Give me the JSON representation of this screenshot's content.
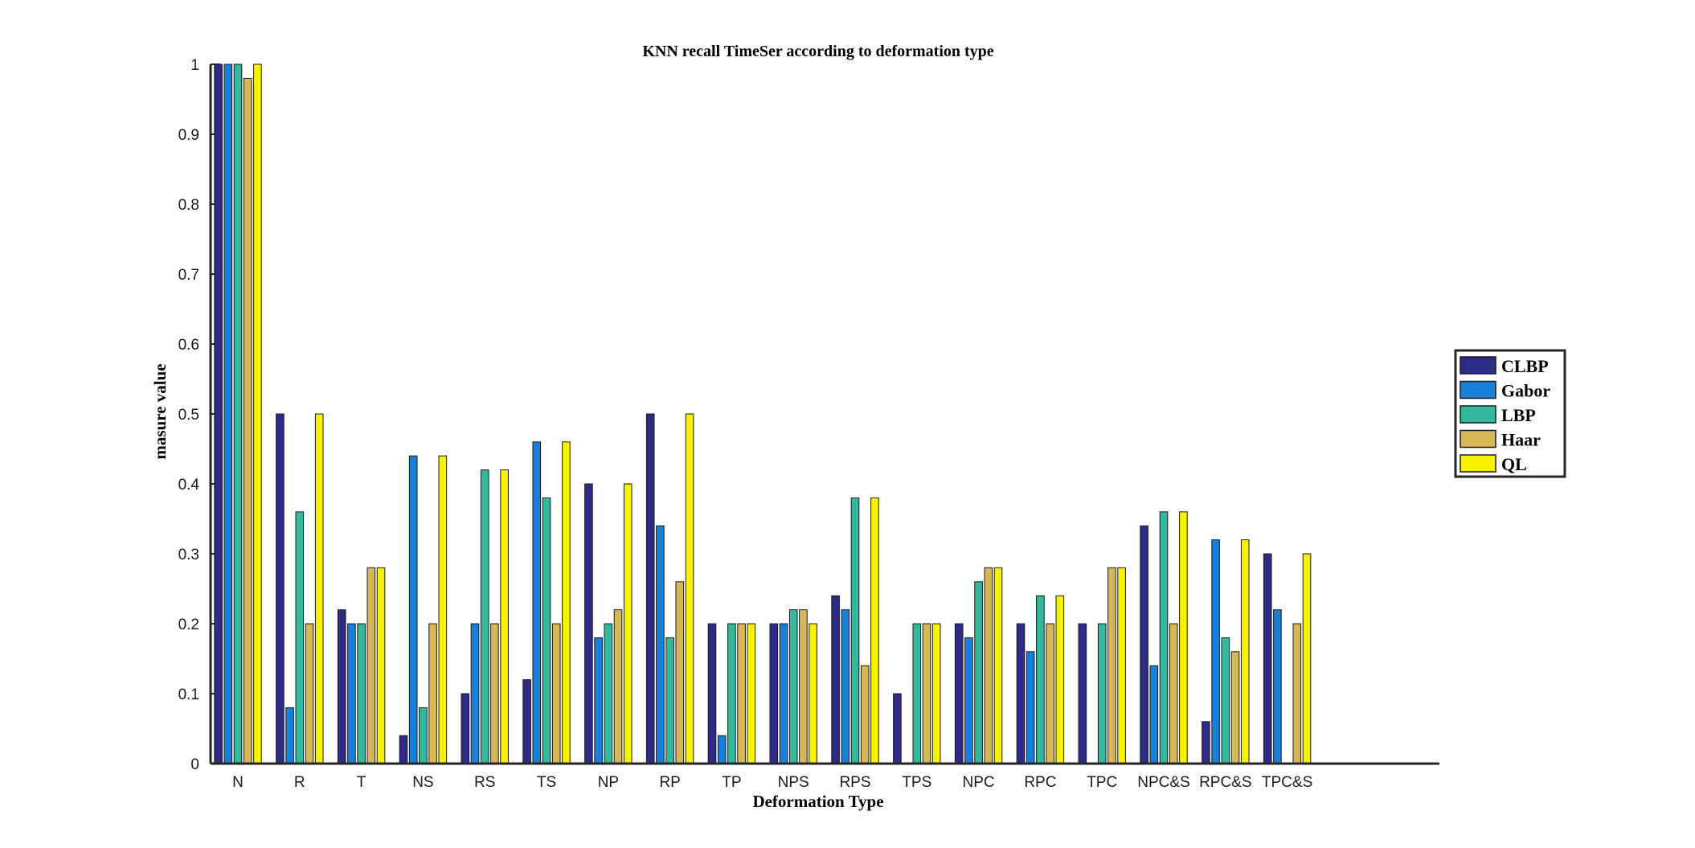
{
  "chart_data": {
    "type": "bar",
    "title": "KNN recall TimeSer according to deformation type",
    "xlabel": "Deformation Type",
    "ylabel": "masure value",
    "ylim": [
      0,
      1
    ],
    "yticks": [
      "0",
      "0.1",
      "0.2",
      "0.3",
      "0.4",
      "0.5",
      "0.6",
      "0.7",
      "0.8",
      "0.9",
      "1"
    ],
    "grid": false,
    "legend_position": "right",
    "categories": [
      "N",
      "R",
      "T",
      "NS",
      "RS",
      "TS",
      "NP",
      "RP",
      "TP",
      "NPS",
      "RPS",
      "TPS",
      "NPC",
      "RPC",
      "TPC",
      "NPC&S",
      "RPC&S",
      "TPC&S"
    ],
    "series": [
      {
        "name": "CLBP",
        "color": "#2e2a87",
        "values": [
          1.0,
          0.5,
          0.22,
          0.04,
          0.1,
          0.12,
          0.4,
          0.5,
          0.2,
          0.2,
          0.24,
          0.1,
          0.2,
          0.2,
          0.2,
          0.34,
          0.06,
          0.3
        ]
      },
      {
        "name": "Gabor",
        "color": "#1a7fd8",
        "values": [
          1.0,
          0.08,
          0.2,
          0.44,
          0.2,
          0.46,
          0.18,
          0.34,
          0.04,
          0.2,
          0.22,
          0.0,
          0.18,
          0.16,
          0.0,
          0.14,
          0.32,
          0.22
        ]
      },
      {
        "name": "LBP",
        "color": "#33b89c",
        "values": [
          1.0,
          0.36,
          0.2,
          0.08,
          0.42,
          0.38,
          0.2,
          0.18,
          0.2,
          0.22,
          0.38,
          0.2,
          0.26,
          0.24,
          0.2,
          0.36,
          0.18,
          0.0
        ]
      },
      {
        "name": "Haar",
        "color": "#d8b856",
        "values": [
          0.98,
          0.2,
          0.28,
          0.2,
          0.2,
          0.2,
          0.22,
          0.26,
          0.2,
          0.22,
          0.14,
          0.2,
          0.28,
          0.2,
          0.28,
          0.2,
          0.16,
          0.2
        ]
      },
      {
        "name": "QL",
        "color": "#f7f200",
        "values": [
          1.0,
          0.5,
          0.28,
          0.44,
          0.42,
          0.46,
          0.4,
          0.5,
          0.2,
          0.2,
          0.38,
          0.2,
          0.28,
          0.24,
          0.28,
          0.36,
          0.32,
          0.3
        ]
      }
    ]
  }
}
